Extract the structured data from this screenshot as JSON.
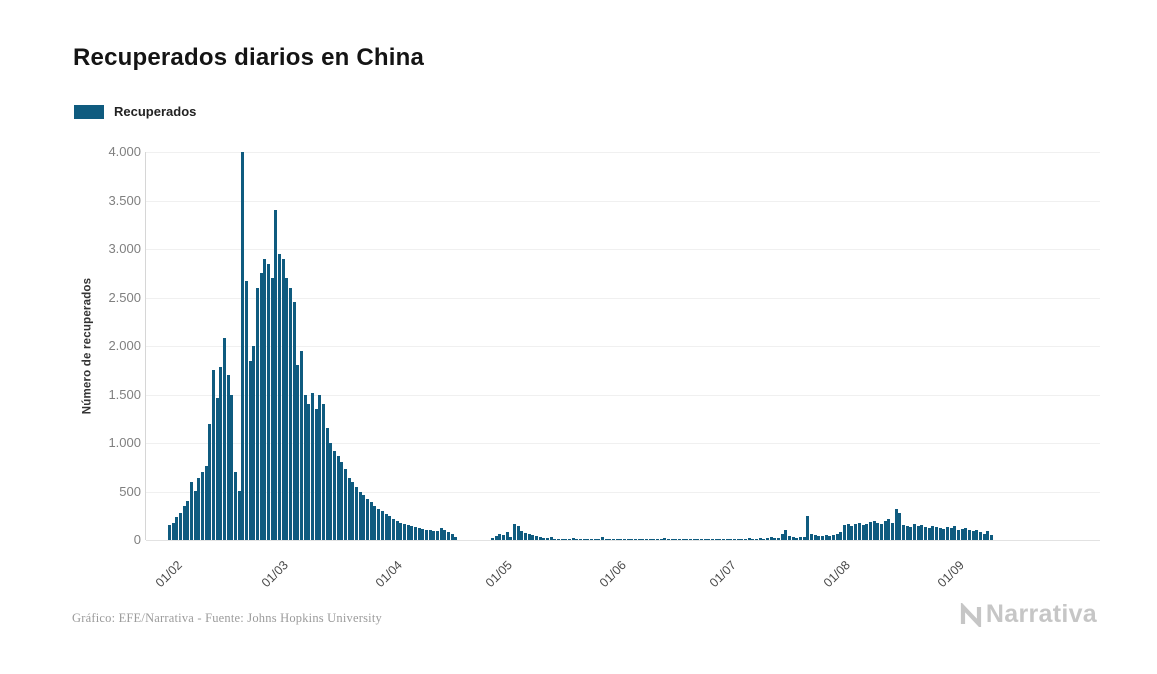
{
  "header": {
    "title": "Recuperados diarios en China"
  },
  "legend": {
    "label": "Recuperados",
    "color": "#0f5b7f"
  },
  "chart_data": {
    "type": "bar",
    "title": "Recuperados diarios en China",
    "xlabel": "",
    "ylabel": "Número de recuperados",
    "series_name": "Recuperados",
    "bar_color": "#0f5b7f",
    "ylim": [
      0,
      4000
    ],
    "yticks": [
      0,
      500,
      1000,
      1500,
      2000,
      2500,
      3000,
      3500,
      4000
    ],
    "ytick_labels": [
      "0",
      "500",
      "1.000",
      "1.500",
      "2.000",
      "2.500",
      "3.000",
      "3.500",
      "4.000"
    ],
    "x_tick_labels": [
      "01/02",
      "01/03",
      "01/04",
      "01/05",
      "01/06",
      "01/07",
      "01/08",
      "01/09"
    ],
    "x_tick_day_index": [
      0,
      29,
      60,
      90,
      121,
      151,
      182,
      213
    ],
    "x_start_label": "01/02",
    "x_total_days": 260,
    "pad_start_days": 6,
    "grid": true,
    "legend_position": "top-left",
    "values": [
      150,
      180,
      240,
      280,
      350,
      400,
      600,
      510,
      640,
      700,
      760,
      1200,
      1750,
      1460,
      1780,
      2080,
      1700,
      1500,
      700,
      510,
      4000,
      2670,
      1850,
      2000,
      2600,
      2750,
      2900,
      2850,
      2700,
      3400,
      2950,
      2900,
      2700,
      2600,
      2450,
      1800,
      1950,
      1500,
      1400,
      1520,
      1350,
      1500,
      1400,
      1150,
      1000,
      920,
      870,
      800,
      730,
      640,
      600,
      550,
      500,
      460,
      420,
      390,
      350,
      320,
      300,
      270,
      250,
      220,
      200,
      180,
      160,
      150,
      140,
      130,
      120,
      110,
      105,
      100,
      95,
      90,
      120,
      100,
      80,
      60,
      30,
      0,
      0,
      0,
      0,
      0,
      0,
      0,
      0,
      0,
      20,
      40,
      60,
      50,
      80,
      30,
      160,
      140,
      90,
      70,
      60,
      50,
      40,
      30,
      25,
      20,
      30,
      15,
      10,
      10,
      8,
      5,
      20,
      5,
      5,
      3,
      3,
      2,
      2,
      2,
      30,
      2,
      2,
      5,
      3,
      2,
      2,
      10,
      2,
      2,
      15,
      3,
      2,
      2,
      8,
      3,
      2,
      20,
      5,
      3,
      2,
      2,
      10,
      3,
      2,
      5,
      3,
      2,
      15,
      5,
      3,
      2,
      2,
      10,
      5,
      8,
      12,
      6,
      10,
      15,
      20,
      12,
      10,
      25,
      15,
      20,
      30,
      18,
      25,
      60,
      100,
      40,
      30,
      25,
      35,
      30,
      250,
      60,
      50,
      45,
      40,
      55,
      45,
      50,
      60,
      80,
      150,
      170,
      140,
      160,
      180,
      150,
      170,
      190,
      200,
      180,
      160,
      200,
      220,
      180,
      320,
      280,
      150,
      140,
      130,
      160,
      140,
      150,
      130,
      120,
      140,
      130,
      120,
      110,
      130,
      120,
      140,
      100,
      110,
      120,
      100,
      90,
      100,
      80,
      60,
      90,
      50
    ]
  },
  "footer": {
    "credit": "Gráfico: EFE/Narrativa - Fuente: Johns Hopkins University",
    "brand": "Narrativa"
  }
}
